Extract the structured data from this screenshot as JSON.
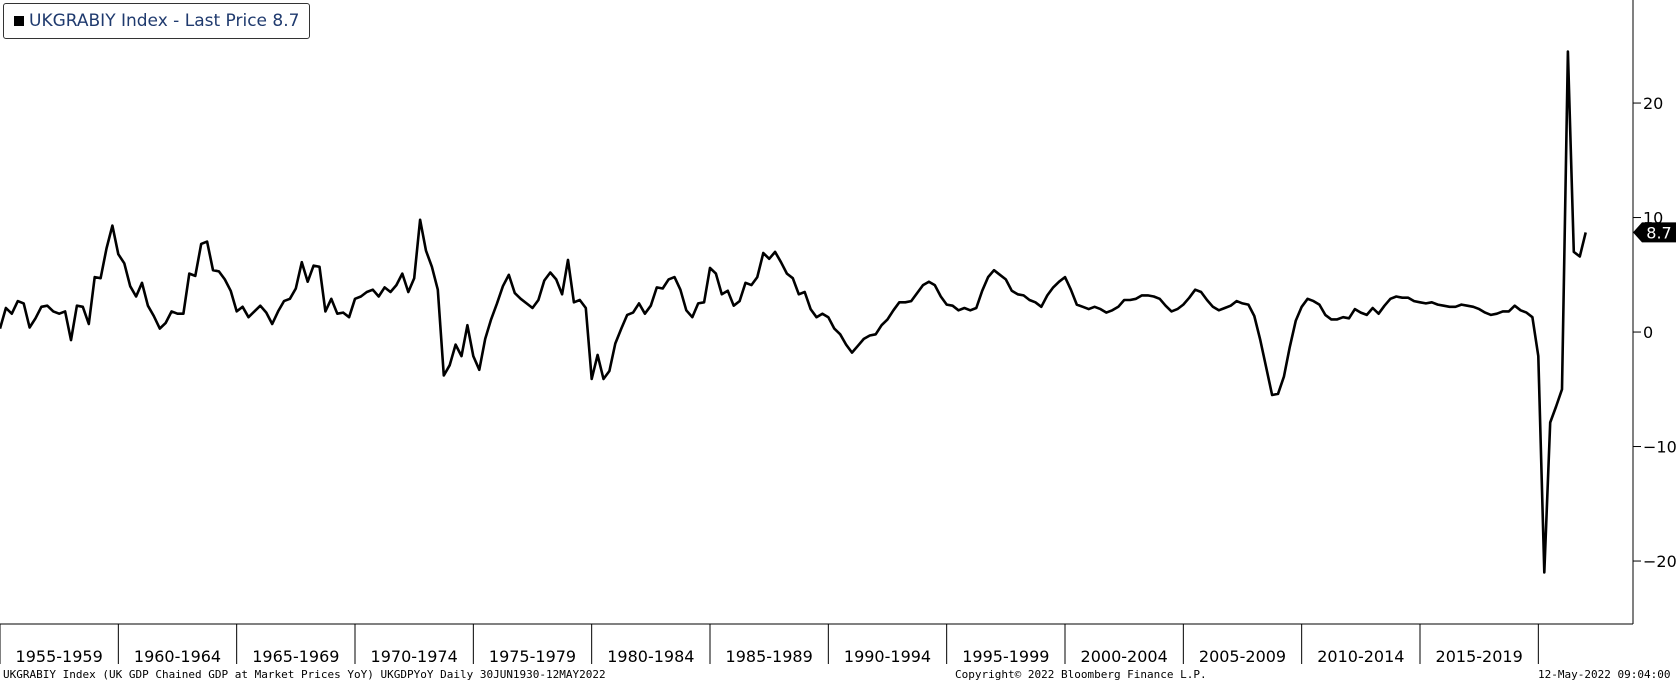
{
  "legend": {
    "label": "UKGRABIY Index - Last Price 8.7"
  },
  "footer": {
    "left": "UKGRABIY Index (UK GDP Chained GDP at Market Prices YoY) UKGDPYoY  Daily 30JUN1930-12MAY2022",
    "center": "Copyright© 2022 Bloomberg Finance L.P.",
    "right": "12-May-2022 09:04:00"
  },
  "colors": {
    "line": "#000000",
    "legend_text": "#1f3a6e",
    "last_price_badge": "#000000"
  },
  "chart_data": {
    "type": "line",
    "title": "",
    "xlabel": "",
    "ylabel": "",
    "ylim": [
      -25.5,
      29
    ],
    "yticks": [
      20,
      10,
      0,
      -10,
      -20
    ],
    "grid": false,
    "legend_position": "top-left",
    "last_price": {
      "value": 8.7,
      "label": "8.7"
    },
    "x_ticks": [
      "1955-1959",
      "1960-1964",
      "1965-1969",
      "1970-1974",
      "1975-1979",
      "1980-1984",
      "1985-1989",
      "1990-1994",
      "1995-1999",
      "2000-2004",
      "2005-2009",
      "2010-2014",
      "2015-2019",
      ""
    ],
    "x_range": [
      1955,
      2024
    ],
    "series": [
      {
        "values": [
          [
            1955.0,
            0.3
          ],
          [
            1955.25,
            2.1
          ],
          [
            1955.5,
            1.6
          ],
          [
            1955.75,
            2.7
          ],
          [
            1956.0,
            2.5
          ],
          [
            1956.25,
            0.4
          ],
          [
            1956.5,
            1.2
          ],
          [
            1956.75,
            2.2
          ],
          [
            1957.0,
            2.3
          ],
          [
            1957.25,
            1.8
          ],
          [
            1957.5,
            1.6
          ],
          [
            1957.75,
            1.8
          ],
          [
            1958.0,
            -0.7
          ],
          [
            1958.25,
            2.3
          ],
          [
            1958.5,
            2.2
          ],
          [
            1958.75,
            0.7
          ],
          [
            1959.0,
            4.8
          ],
          [
            1959.25,
            4.7
          ],
          [
            1959.5,
            7.3
          ],
          [
            1959.75,
            9.3
          ],
          [
            1960.0,
            6.8
          ],
          [
            1960.25,
            6.0
          ],
          [
            1960.5,
            4.0
          ],
          [
            1960.75,
            3.1
          ],
          [
            1961.0,
            4.3
          ],
          [
            1961.25,
            2.3
          ],
          [
            1961.5,
            1.4
          ],
          [
            1961.75,
            0.3
          ],
          [
            1962.0,
            0.8
          ],
          [
            1962.25,
            1.8
          ],
          [
            1962.5,
            1.6
          ],
          [
            1962.75,
            1.6
          ],
          [
            1963.0,
            5.1
          ],
          [
            1963.25,
            4.9
          ],
          [
            1963.5,
            7.7
          ],
          [
            1963.75,
            7.9
          ],
          [
            1964.0,
            5.4
          ],
          [
            1964.25,
            5.3
          ],
          [
            1964.5,
            4.6
          ],
          [
            1964.75,
            3.6
          ],
          [
            1965.0,
            1.8
          ],
          [
            1965.25,
            2.2
          ],
          [
            1965.5,
            1.3
          ],
          [
            1965.75,
            1.8
          ],
          [
            1966.0,
            2.3
          ],
          [
            1966.25,
            1.7
          ],
          [
            1966.5,
            0.7
          ],
          [
            1966.75,
            1.8
          ],
          [
            1967.0,
            2.7
          ],
          [
            1967.25,
            2.9
          ],
          [
            1967.5,
            3.8
          ],
          [
            1967.75,
            6.1
          ],
          [
            1968.0,
            4.4
          ],
          [
            1968.25,
            5.8
          ],
          [
            1968.5,
            5.7
          ],
          [
            1968.75,
            1.8
          ],
          [
            1969.0,
            2.9
          ],
          [
            1969.25,
            1.6
          ],
          [
            1969.5,
            1.7
          ],
          [
            1969.75,
            1.3
          ],
          [
            1970.0,
            2.9
          ],
          [
            1970.25,
            3.1
          ],
          [
            1970.5,
            3.5
          ],
          [
            1970.75,
            3.7
          ],
          [
            1971.0,
            3.1
          ],
          [
            1971.25,
            3.9
          ],
          [
            1971.5,
            3.5
          ],
          [
            1971.75,
            4.1
          ],
          [
            1972.0,
            5.1
          ],
          [
            1972.25,
            3.5
          ],
          [
            1972.5,
            4.7
          ],
          [
            1972.75,
            9.8
          ],
          [
            1973.0,
            7.1
          ],
          [
            1973.25,
            5.7
          ],
          [
            1973.5,
            3.7
          ],
          [
            1973.75,
            -3.8
          ],
          [
            1974.0,
            -2.9
          ],
          [
            1974.25,
            -1.1
          ],
          [
            1974.5,
            -2.1
          ],
          [
            1974.75,
            0.6
          ],
          [
            1975.0,
            -2.1
          ],
          [
            1975.25,
            -3.3
          ],
          [
            1975.5,
            -0.6
          ],
          [
            1975.75,
            1.1
          ],
          [
            1976.0,
            2.5
          ],
          [
            1976.25,
            4.0
          ],
          [
            1976.5,
            5.0
          ],
          [
            1976.75,
            3.4
          ],
          [
            1977.0,
            2.9
          ],
          [
            1977.25,
            2.5
          ],
          [
            1977.5,
            2.1
          ],
          [
            1977.75,
            2.8
          ],
          [
            1978.0,
            4.5
          ],
          [
            1978.25,
            5.2
          ],
          [
            1978.5,
            4.6
          ],
          [
            1978.75,
            3.3
          ],
          [
            1979.0,
            6.3
          ],
          [
            1979.25,
            2.6
          ],
          [
            1979.5,
            2.8
          ],
          [
            1979.75,
            2.1
          ],
          [
            1980.0,
            -4.1
          ],
          [
            1980.25,
            -2.0
          ],
          [
            1980.5,
            -4.1
          ],
          [
            1980.75,
            -3.4
          ],
          [
            1981.0,
            -1.0
          ],
          [
            1981.25,
            0.3
          ],
          [
            1981.5,
            1.5
          ],
          [
            1981.75,
            1.7
          ],
          [
            1982.0,
            2.5
          ],
          [
            1982.25,
            1.6
          ],
          [
            1982.5,
            2.3
          ],
          [
            1982.75,
            3.9
          ],
          [
            1983.0,
            3.8
          ],
          [
            1983.25,
            4.6
          ],
          [
            1983.5,
            4.8
          ],
          [
            1983.75,
            3.7
          ],
          [
            1984.0,
            1.9
          ],
          [
            1984.25,
            1.3
          ],
          [
            1984.5,
            2.5
          ],
          [
            1984.75,
            2.6
          ],
          [
            1985.0,
            5.6
          ],
          [
            1985.25,
            5.1
          ],
          [
            1985.5,
            3.3
          ],
          [
            1985.75,
            3.6
          ],
          [
            1986.0,
            2.3
          ],
          [
            1986.25,
            2.7
          ],
          [
            1986.5,
            4.3
          ],
          [
            1986.75,
            4.1
          ],
          [
            1987.0,
            4.8
          ],
          [
            1987.25,
            6.9
          ],
          [
            1987.5,
            6.4
          ],
          [
            1987.75,
            7.0
          ],
          [
            1988.0,
            6.1
          ],
          [
            1988.25,
            5.1
          ],
          [
            1988.5,
            4.7
          ],
          [
            1988.75,
            3.3
          ],
          [
            1989.0,
            3.5
          ],
          [
            1989.25,
            2.0
          ],
          [
            1989.5,
            1.3
          ],
          [
            1989.75,
            1.6
          ],
          [
            1990.0,
            1.3
          ],
          [
            1990.25,
            0.3
          ],
          [
            1990.5,
            -0.2
          ],
          [
            1990.75,
            -1.1
          ],
          [
            1991.0,
            -1.8
          ],
          [
            1991.25,
            -1.2
          ],
          [
            1991.5,
            -0.6
          ],
          [
            1991.75,
            -0.3
          ],
          [
            1992.0,
            -0.2
          ],
          [
            1992.25,
            0.6
          ],
          [
            1992.5,
            1.1
          ],
          [
            1992.75,
            1.9
          ],
          [
            1993.0,
            2.6
          ],
          [
            1993.25,
            2.6
          ],
          [
            1993.5,
            2.7
          ],
          [
            1993.75,
            3.4
          ],
          [
            1994.0,
            4.1
          ],
          [
            1994.25,
            4.4
          ],
          [
            1994.5,
            4.1
          ],
          [
            1994.75,
            3.1
          ],
          [
            1995.0,
            2.4
          ],
          [
            1995.25,
            2.3
          ],
          [
            1995.5,
            1.9
          ],
          [
            1995.75,
            2.1
          ],
          [
            1996.0,
            1.9
          ],
          [
            1996.25,
            2.1
          ],
          [
            1996.5,
            3.6
          ],
          [
            1996.75,
            4.8
          ],
          [
            1997.0,
            5.4
          ],
          [
            1997.25,
            5.0
          ],
          [
            1997.5,
            4.6
          ],
          [
            1997.75,
            3.6
          ],
          [
            1998.0,
            3.3
          ],
          [
            1998.25,
            3.2
          ],
          [
            1998.5,
            2.8
          ],
          [
            1998.75,
            2.6
          ],
          [
            1999.0,
            2.2
          ],
          [
            1999.25,
            3.2
          ],
          [
            1999.5,
            3.9
          ],
          [
            1999.75,
            4.4
          ],
          [
            2000.0,
            4.8
          ],
          [
            2000.25,
            3.7
          ],
          [
            2000.5,
            2.4
          ],
          [
            2000.75,
            2.2
          ],
          [
            2001.0,
            2.0
          ],
          [
            2001.25,
            2.2
          ],
          [
            2001.5,
            2.0
          ],
          [
            2001.75,
            1.7
          ],
          [
            2002.0,
            1.9
          ],
          [
            2002.25,
            2.2
          ],
          [
            2002.5,
            2.8
          ],
          [
            2002.75,
            2.8
          ],
          [
            2003.0,
            2.9
          ],
          [
            2003.25,
            3.2
          ],
          [
            2003.5,
            3.2
          ],
          [
            2003.75,
            3.1
          ],
          [
            2004.0,
            2.9
          ],
          [
            2004.25,
            2.3
          ],
          [
            2004.5,
            1.8
          ],
          [
            2004.75,
            2.0
          ],
          [
            2005.0,
            2.4
          ],
          [
            2005.25,
            3.0
          ],
          [
            2005.5,
            3.7
          ],
          [
            2005.75,
            3.5
          ],
          [
            2006.0,
            2.8
          ],
          [
            2006.25,
            2.2
          ],
          [
            2006.5,
            1.9
          ],
          [
            2006.75,
            2.1
          ],
          [
            2007.0,
            2.3
          ],
          [
            2007.25,
            2.7
          ],
          [
            2007.5,
            2.5
          ],
          [
            2007.75,
            2.4
          ],
          [
            2008.0,
            1.4
          ],
          [
            2008.25,
            -0.7
          ],
          [
            2008.5,
            -3.1
          ],
          [
            2008.75,
            -5.5
          ],
          [
            2009.0,
            -5.4
          ],
          [
            2009.25,
            -3.9
          ],
          [
            2009.5,
            -1.3
          ],
          [
            2009.75,
            1.0
          ],
          [
            2010.0,
            2.2
          ],
          [
            2010.25,
            2.9
          ],
          [
            2010.5,
            2.7
          ],
          [
            2010.75,
            2.4
          ],
          [
            2011.0,
            1.5
          ],
          [
            2011.25,
            1.1
          ],
          [
            2011.5,
            1.1
          ],
          [
            2011.75,
            1.3
          ],
          [
            2012.0,
            1.2
          ],
          [
            2012.25,
            2.0
          ],
          [
            2012.5,
            1.7
          ],
          [
            2012.75,
            1.5
          ],
          [
            2013.0,
            2.1
          ],
          [
            2013.25,
            1.6
          ],
          [
            2013.5,
            2.3
          ],
          [
            2013.75,
            2.9
          ],
          [
            2014.0,
            3.1
          ],
          [
            2014.25,
            3.0
          ],
          [
            2014.5,
            3.0
          ],
          [
            2014.75,
            2.7
          ],
          [
            2015.0,
            2.6
          ],
          [
            2015.25,
            2.5
          ],
          [
            2015.5,
            2.6
          ],
          [
            2015.75,
            2.4
          ],
          [
            2016.0,
            2.3
          ],
          [
            2016.25,
            2.2
          ],
          [
            2016.5,
            2.2
          ],
          [
            2016.75,
            2.4
          ],
          [
            2017.0,
            2.3
          ],
          [
            2017.25,
            2.2
          ],
          [
            2017.5,
            2.0
          ],
          [
            2017.75,
            1.7
          ],
          [
            2018.0,
            1.5
          ],
          [
            2018.25,
            1.6
          ],
          [
            2018.5,
            1.8
          ],
          [
            2018.75,
            1.8
          ],
          [
            2019.0,
            2.3
          ],
          [
            2019.25,
            1.9
          ],
          [
            2019.5,
            1.7
          ],
          [
            2019.75,
            1.3
          ],
          [
            2020.0,
            -2.1
          ],
          [
            2020.25,
            -21.0
          ],
          [
            2020.5,
            -7.9
          ],
          [
            2020.75,
            -6.5
          ],
          [
            2021.0,
            -5.0
          ],
          [
            2021.25,
            24.5
          ],
          [
            2021.5,
            7.0
          ],
          [
            2021.75,
            6.6
          ],
          [
            2022.0,
            8.7
          ]
        ]
      }
    ]
  }
}
